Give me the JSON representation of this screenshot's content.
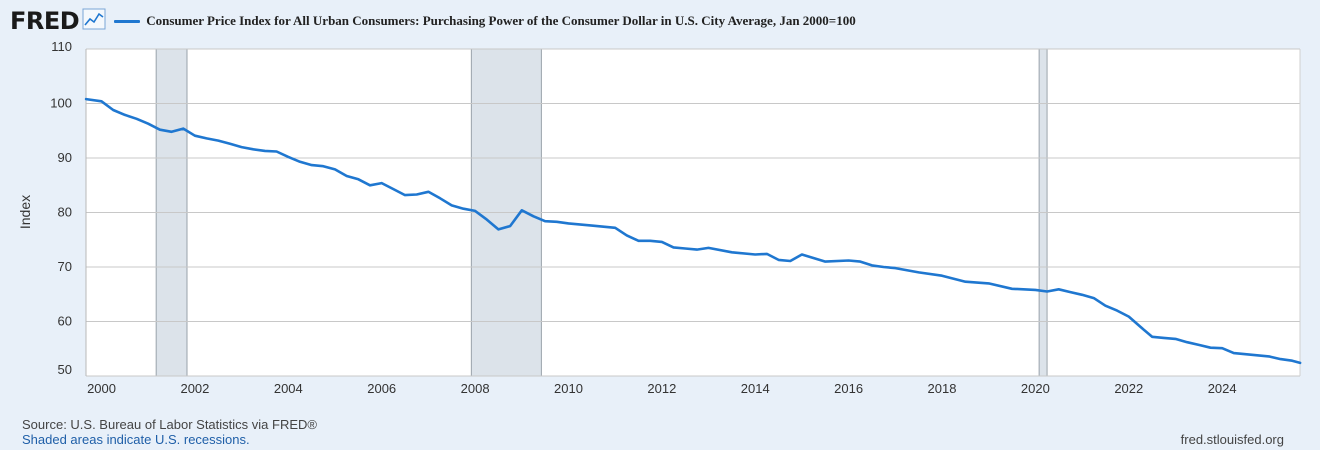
{
  "brand": {
    "logo_text": "FRED",
    "logo_icon": "line-graph-icon"
  },
  "colors": {
    "series": "#1f77d0",
    "recession": "#dce3ea",
    "grid": "#c8c8c8",
    "background": "#e8f0f9"
  },
  "footer": {
    "source": "Source: U.S. Bureau of Labor Statistics via FRED®",
    "recession_note": "Shaded areas indicate U.S. recessions.",
    "url": "fred.stlouisfed.org"
  },
  "chart_data": {
    "type": "line",
    "title": "Consumer Price Index for All Urban Consumers: Purchasing Power of the Consumer Dollar in U.S. City Average, Jan 2000=100",
    "xlabel": "",
    "ylabel": "Index",
    "xlim": [
      1999.667,
      2025.667
    ],
    "ylim": [
      50,
      110
    ],
    "yticks": [
      50,
      60,
      70,
      80,
      90,
      100,
      110
    ],
    "xticks": [
      2000,
      2002,
      2004,
      2006,
      2008,
      2010,
      2012,
      2014,
      2016,
      2018,
      2020,
      2022,
      2024
    ],
    "grid": true,
    "recessions": [
      [
        2001.17,
        2001.83
      ],
      [
        2007.92,
        2009.42
      ],
      [
        2020.08,
        2020.25
      ]
    ],
    "series": [
      {
        "name": "Consumer Price Index for All Urban Consumers: Purchasing Power of the Consumer Dollar in U.S. City Average, Jan 2000=100",
        "x": [
          1999.67,
          2000.0,
          2000.25,
          2000.5,
          2000.75,
          2001.0,
          2001.25,
          2001.5,
          2001.75,
          2002.0,
          2002.25,
          2002.5,
          2002.75,
          2003.0,
          2003.25,
          2003.5,
          2003.75,
          2004.0,
          2004.25,
          2004.5,
          2004.75,
          2005.0,
          2005.25,
          2005.5,
          2005.75,
          2006.0,
          2006.25,
          2006.5,
          2006.75,
          2007.0,
          2007.25,
          2007.5,
          2007.75,
          2008.0,
          2008.25,
          2008.5,
          2008.75,
          2009.0,
          2009.25,
          2009.5,
          2009.75,
          2010.0,
          2010.5,
          2011.0,
          2011.25,
          2011.5,
          2011.75,
          2012.0,
          2012.25,
          2012.5,
          2012.75,
          2013.0,
          2013.5,
          2014.0,
          2014.25,
          2014.5,
          2014.75,
          2015.0,
          2015.5,
          2016.0,
          2016.25,
          2016.5,
          2016.75,
          2017.0,
          2017.5,
          2018.0,
          2018.5,
          2019.0,
          2019.5,
          2020.0,
          2020.25,
          2020.5,
          2020.75,
          2021.0,
          2021.25,
          2021.5,
          2021.75,
          2022.0,
          2022.25,
          2022.5,
          2022.75,
          2023.0,
          2023.25,
          2023.5,
          2023.75,
          2024.0,
          2024.25,
          2024.5,
          2024.75,
          2025.0,
          2025.25,
          2025.5,
          2025.67
        ],
        "values": [
          100.8,
          100.4,
          98.8,
          97.9,
          97.2,
          96.3,
          95.2,
          94.8,
          95.4,
          94.1,
          93.6,
          93.2,
          92.6,
          92.0,
          91.6,
          91.3,
          91.2,
          90.2,
          89.3,
          88.7,
          88.5,
          87.9,
          86.7,
          86.1,
          85.0,
          85.4,
          84.3,
          83.2,
          83.3,
          83.8,
          82.6,
          81.3,
          80.7,
          80.3,
          78.7,
          76.9,
          77.5,
          80.4,
          79.3,
          78.4,
          78.3,
          78.0,
          77.6,
          77.2,
          75.8,
          74.8,
          74.8,
          74.6,
          73.6,
          73.4,
          73.2,
          73.5,
          72.7,
          72.3,
          72.4,
          71.3,
          71.1,
          72.3,
          71.0,
          71.2,
          71.0,
          70.3,
          70.0,
          69.8,
          69.0,
          68.4,
          67.3,
          67.0,
          66.0,
          65.8,
          65.5,
          65.9,
          65.4,
          64.9,
          64.3,
          62.9,
          62.0,
          60.9,
          59.0,
          57.2,
          57.0,
          56.8,
          56.2,
          55.7,
          55.2,
          55.1,
          54.2,
          54.0,
          53.8,
          53.6,
          53.1,
          52.8,
          52.4
        ]
      }
    ]
  }
}
